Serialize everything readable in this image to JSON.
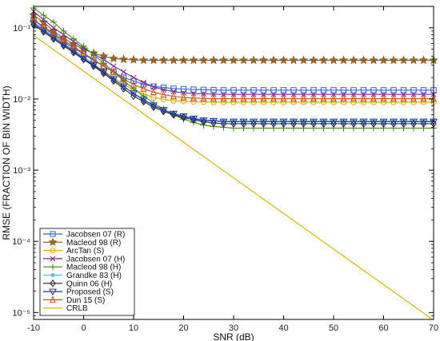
{
  "chart_data": {
    "type": "line",
    "title": "",
    "xlabel": "SNR (dB)",
    "ylabel": "RMSE (FRACTION OF BIN WIDTH)",
    "xlim": [
      -10,
      70
    ],
    "ylim": [
      8e-06,
      0.2
    ],
    "yscale": "log",
    "grid": false,
    "legend_position": "bottom-left",
    "x_ticks": [
      -10,
      0,
      10,
      20,
      30,
      40,
      50,
      60,
      70
    ],
    "x_tick_labels": [
      "-10",
      "0",
      "10",
      "20",
      "30",
      "40",
      "50",
      "60",
      "70"
    ],
    "y_ticks": [
      1e-05,
      0.0001,
      0.001,
      0.01,
      0.1
    ],
    "y_tick_labels": [
      "10⁻⁵",
      "10⁻⁴",
      "10⁻³",
      "10⁻²",
      "10⁻¹"
    ],
    "series": [
      {
        "name": "Jacobsen 07 (R)",
        "color": "#3060c8",
        "marker": "square",
        "x": [
          -10,
          -8,
          -6,
          -4,
          -2,
          0,
          2,
          4,
          6,
          8,
          10,
          12,
          14,
          16,
          18,
          20,
          22,
          24,
          26,
          28,
          30,
          32,
          34,
          36,
          38,
          40,
          42,
          44,
          46,
          48,
          50,
          52,
          54,
          56,
          58,
          60,
          62,
          64,
          66,
          68,
          70
        ],
        "y": [
          0.13,
          0.1,
          0.08,
          0.064,
          0.052,
          0.043,
          0.035,
          0.029,
          0.024,
          0.02,
          0.018,
          0.016,
          0.015,
          0.0145,
          0.014,
          0.0138,
          0.0136,
          0.0135,
          0.0134,
          0.0133,
          0.0133,
          0.0133,
          0.0133,
          0.0133,
          0.0133,
          0.0133,
          0.0133,
          0.0133,
          0.0133,
          0.0133,
          0.0133,
          0.0133,
          0.0133,
          0.0133,
          0.0133,
          0.0133,
          0.0133,
          0.0133,
          0.0133,
          0.0133,
          0.0133
        ]
      },
      {
        "name": "Macleod 98 (R)",
        "color": "#8a5a1e",
        "marker": "star",
        "x": [
          -10,
          -8,
          -6,
          -4,
          -2,
          0,
          2,
          4,
          6,
          8,
          10,
          12,
          14,
          16,
          18,
          20,
          22,
          24,
          26,
          28,
          30,
          32,
          34,
          36,
          38,
          40,
          42,
          44,
          46,
          48,
          50,
          52,
          54,
          56,
          58,
          60,
          62,
          64,
          66,
          68,
          70
        ],
        "y": [
          0.15,
          0.12,
          0.09,
          0.072,
          0.059,
          0.05,
          0.044,
          0.04,
          0.037,
          0.036,
          0.0355,
          0.035,
          0.035,
          0.035,
          0.035,
          0.035,
          0.035,
          0.035,
          0.035,
          0.035,
          0.035,
          0.035,
          0.035,
          0.035,
          0.035,
          0.035,
          0.035,
          0.035,
          0.035,
          0.035,
          0.035,
          0.035,
          0.035,
          0.035,
          0.035,
          0.035,
          0.035,
          0.035,
          0.035,
          0.035,
          0.035
        ]
      },
      {
        "name": "ArcTan (S)",
        "color": "#d4b000",
        "marker": "circle",
        "x": [
          -10,
          -8,
          -6,
          -4,
          -2,
          0,
          2,
          4,
          6,
          8,
          10,
          12,
          14,
          16,
          18,
          20,
          22,
          24,
          26,
          28,
          30,
          32,
          34,
          36,
          38,
          40,
          42,
          44,
          46,
          48,
          50,
          52,
          54,
          56,
          58,
          60,
          62,
          64,
          66,
          68,
          70
        ],
        "y": [
          0.12,
          0.095,
          0.075,
          0.06,
          0.048,
          0.039,
          0.031,
          0.025,
          0.02,
          0.016,
          0.0135,
          0.0118,
          0.0105,
          0.0099,
          0.0095,
          0.0093,
          0.0092,
          0.0091,
          0.009,
          0.009,
          0.009,
          0.009,
          0.009,
          0.009,
          0.009,
          0.009,
          0.009,
          0.009,
          0.009,
          0.009,
          0.009,
          0.009,
          0.009,
          0.009,
          0.009,
          0.009,
          0.009,
          0.009,
          0.009,
          0.009,
          0.009
        ]
      },
      {
        "name": "Jacobsen 07 (H)",
        "color": "#7a2a8a",
        "marker": "x",
        "x": [
          -10,
          -8,
          -6,
          -4,
          -2,
          0,
          2,
          4,
          6,
          8,
          10,
          12,
          14,
          16,
          18,
          20,
          22,
          24,
          26,
          28,
          30,
          32,
          34,
          36,
          38,
          40,
          42,
          44,
          46,
          48,
          50,
          52,
          54,
          56,
          58,
          60,
          62,
          64,
          66,
          68,
          70
        ],
        "y": [
          0.17,
          0.13,
          0.1,
          0.08,
          0.064,
          0.052,
          0.043,
          0.036,
          0.029,
          0.024,
          0.02,
          0.017,
          0.0148,
          0.0135,
          0.0127,
          0.0122,
          0.0119,
          0.0118,
          0.0117,
          0.0116,
          0.0116,
          0.0116,
          0.0116,
          0.0116,
          0.0116,
          0.0116,
          0.0116,
          0.0116,
          0.0116,
          0.0116,
          0.0116,
          0.0116,
          0.0116,
          0.0116,
          0.0116,
          0.0116,
          0.0116,
          0.0116,
          0.0116,
          0.0116,
          0.0116
        ]
      },
      {
        "name": "Macleod 98 (H)",
        "color": "#4a8a1e",
        "marker": "plus",
        "x": [
          -10,
          -8,
          -6,
          -4,
          -2,
          0,
          2,
          4,
          6,
          8,
          10,
          12,
          14,
          16,
          18,
          20,
          22,
          24,
          26,
          28,
          30,
          32,
          34,
          36,
          38,
          40,
          42,
          44,
          46,
          48,
          50,
          52,
          54,
          56,
          58,
          60,
          62,
          64,
          66,
          68,
          70
        ],
        "y": [
          0.19,
          0.15,
          0.12,
          0.09,
          0.07,
          0.055,
          0.042,
          0.032,
          0.024,
          0.018,
          0.014,
          0.011,
          0.0088,
          0.0072,
          0.006,
          0.0052,
          0.0047,
          0.0043,
          0.0041,
          0.004,
          0.0039,
          0.0039,
          0.0039,
          0.0039,
          0.0039,
          0.0039,
          0.0039,
          0.0039,
          0.0039,
          0.0039,
          0.0039,
          0.0039,
          0.0039,
          0.0039,
          0.0039,
          0.0039,
          0.0039,
          0.0039,
          0.0039,
          0.0039,
          0.0039
        ]
      },
      {
        "name": "Grandke 83 (H)",
        "color": "#5ab4e6",
        "marker": "asterisk",
        "x": [
          -10,
          -8,
          -6,
          -4,
          -2,
          0,
          2,
          4,
          6,
          8,
          10,
          12,
          14,
          16,
          18,
          20,
          22,
          24,
          26,
          28,
          30,
          32,
          34,
          36,
          38,
          40,
          42,
          44,
          46,
          48,
          50,
          52,
          54,
          56,
          58,
          60,
          62,
          64,
          66,
          68,
          70
        ],
        "y": [
          0.12,
          0.095,
          0.076,
          0.061,
          0.049,
          0.039,
          0.031,
          0.024,
          0.019,
          0.015,
          0.012,
          0.0098,
          0.0082,
          0.0071,
          0.0063,
          0.0058,
          0.0054,
          0.0051,
          0.005,
          0.0049,
          0.0049,
          0.0049,
          0.0049,
          0.0049,
          0.0049,
          0.0049,
          0.0049,
          0.0049,
          0.0049,
          0.0049,
          0.0049,
          0.0049,
          0.0049,
          0.0049,
          0.0049,
          0.0049,
          0.0049,
          0.0049,
          0.0049,
          0.0049,
          0.0049
        ]
      },
      {
        "name": "Quinn 06 (H)",
        "color": "#222222",
        "marker": "diamond",
        "x": [
          -10,
          -8,
          -6,
          -4,
          -2,
          0,
          2,
          4,
          6,
          8,
          10,
          12,
          14,
          16,
          18,
          20,
          22,
          24,
          26,
          28,
          30,
          32,
          34,
          36,
          38,
          40,
          42,
          44,
          46,
          48,
          50,
          52,
          54,
          56,
          58,
          60,
          62,
          64,
          66,
          68,
          70
        ],
        "y": [
          0.11,
          0.088,
          0.07,
          0.056,
          0.045,
          0.036,
          0.029,
          0.023,
          0.018,
          0.014,
          0.011,
          0.0092,
          0.0077,
          0.0067,
          0.006,
          0.0055,
          0.0051,
          0.0048,
          0.0046,
          0.0045,
          0.0045,
          0.0045,
          0.0045,
          0.0045,
          0.0045,
          0.0045,
          0.0045,
          0.0045,
          0.0045,
          0.0045,
          0.0045,
          0.0045,
          0.0045,
          0.0045,
          0.0045,
          0.0045,
          0.0045,
          0.0045,
          0.0045,
          0.0045,
          0.0045
        ]
      },
      {
        "name": "Proposed (S)",
        "color": "#2233aa",
        "marker": "triangle-down",
        "x": [
          -10,
          -8,
          -6,
          -4,
          -2,
          0,
          2,
          4,
          6,
          8,
          10,
          12,
          14,
          16,
          18,
          20,
          22,
          24,
          26,
          28,
          30,
          32,
          34,
          36,
          38,
          40,
          42,
          44,
          46,
          48,
          50,
          52,
          54,
          56,
          58,
          60,
          62,
          64,
          66,
          68,
          70
        ],
        "y": [
          0.115,
          0.092,
          0.073,
          0.058,
          0.047,
          0.037,
          0.03,
          0.024,
          0.019,
          0.015,
          0.012,
          0.0097,
          0.0081,
          0.007,
          0.0062,
          0.0057,
          0.0053,
          0.005,
          0.0049,
          0.0048,
          0.0048,
          0.0048,
          0.0048,
          0.0048,
          0.0048,
          0.0048,
          0.0048,
          0.0048,
          0.0048,
          0.0048,
          0.0048,
          0.0048,
          0.0048,
          0.0048,
          0.0048,
          0.0048,
          0.0048,
          0.0048,
          0.0048,
          0.0048,
          0.0048
        ]
      },
      {
        "name": "Dun 15 (S)",
        "color": "#c8501e",
        "marker": "triangle-up",
        "x": [
          -10,
          -8,
          -6,
          -4,
          -2,
          0,
          2,
          4,
          6,
          8,
          10,
          12,
          14,
          16,
          18,
          20,
          22,
          24,
          26,
          28,
          30,
          32,
          34,
          36,
          38,
          40,
          42,
          44,
          46,
          48,
          50,
          52,
          54,
          56,
          58,
          60,
          62,
          64,
          66,
          68,
          70
        ],
        "y": [
          0.13,
          0.104,
          0.083,
          0.067,
          0.054,
          0.044,
          0.036,
          0.029,
          0.024,
          0.019,
          0.016,
          0.014,
          0.0125,
          0.0115,
          0.0109,
          0.0105,
          0.0103,
          0.0102,
          0.0101,
          0.0101,
          0.0101,
          0.0101,
          0.0101,
          0.0101,
          0.0101,
          0.0101,
          0.0101,
          0.0101,
          0.0101,
          0.0101,
          0.0101,
          0.0101,
          0.0101,
          0.0101,
          0.0101,
          0.0101,
          0.0101,
          0.0101,
          0.0101,
          0.0101,
          0.0101
        ]
      },
      {
        "name": "CRLB",
        "color": "#d4b000",
        "marker": "none",
        "x": [
          -10,
          70
        ],
        "y": [
          0.078,
          7.8e-06
        ]
      }
    ]
  }
}
